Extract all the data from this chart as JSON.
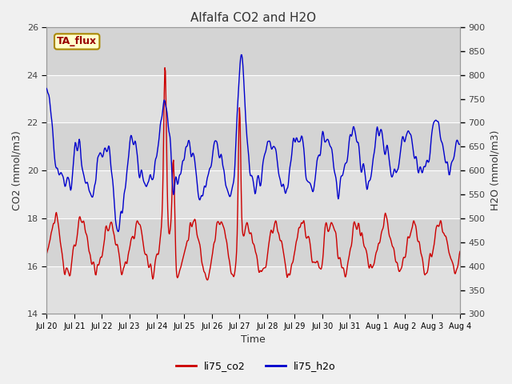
{
  "title": "Alfalfa CO2 and H2O",
  "xlabel": "Time",
  "ylabel_left": "CO2 (mmol/m3)",
  "ylabel_right": "H2O (mmol/m3)",
  "ylim_left": [
    14,
    26
  ],
  "ylim_right": [
    300,
    900
  ],
  "yticks_left": [
    14,
    16,
    18,
    20,
    22,
    24,
    26
  ],
  "yticks_right": [
    300,
    350,
    400,
    450,
    500,
    550,
    600,
    650,
    700,
    750,
    800,
    850,
    900
  ],
  "annotation_text": "TA_flux",
  "annotation_bg": "#ffffcc",
  "annotation_border": "#aa8800",
  "line_co2_color": "#cc0000",
  "line_h2o_color": "#0000cc",
  "legend_co2": "li75_co2",
  "legend_h2o": "li75_h2o",
  "bg_color": "#f0f0f0",
  "plot_bg_dark": "#d8d8d8",
  "plot_bg_light": "#e8e8e8",
  "grid_color": "#cccccc",
  "title_color": "#333333",
  "axis_label_color": "#333333",
  "tick_label_color": "#444444",
  "band_colors": [
    "#e0e0e0",
    "#d0d0d0"
  ],
  "xtick_labels": [
    "Jul 20",
    "Jul 21",
    "Jul 22",
    "Jul 23",
    "Jul 24",
    "Jul 25",
    "Jul 26",
    "Jul 27",
    "Jul 28",
    "Jul 29",
    "Jul 30",
    "Jul 31",
    "Aug 1",
    "Aug 2",
    "Aug 3",
    "Aug 4"
  ]
}
